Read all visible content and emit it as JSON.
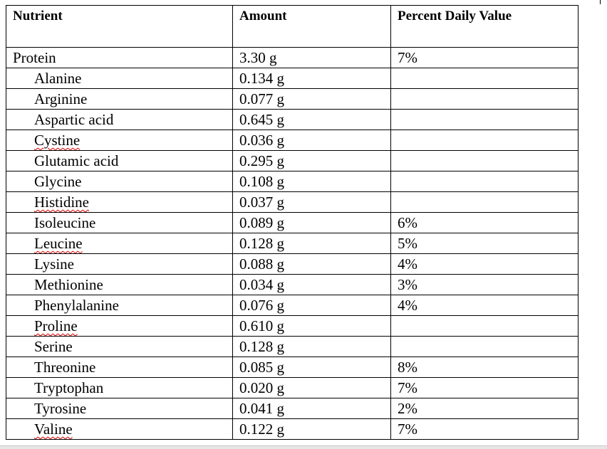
{
  "table": {
    "header": [
      "Nutrient",
      "Amount",
      "Percent Daily Value"
    ],
    "rows": [
      {
        "nutrient": "Protein",
        "amount": "3.30 g",
        "daily_value": "7%",
        "components": [
          {
            "nutrient": "Alanine",
            "amount": "0.134 g"
          },
          {
            "nutrient": "Arginine",
            "amount": "0.077 g"
          },
          {
            "nutrient": "Aspartic acid",
            "amount": "0.645 g"
          },
          {
            "nutrient": "Cystine",
            "amount": "0.036 g",
            "misspelled": true
          },
          {
            "nutrient": "Glutamic acid",
            "amount": "0.295 g"
          },
          {
            "nutrient": "Glycine",
            "amount": "0.108 g"
          },
          {
            "nutrient": "Histidine",
            "amount": "0.037 g",
            "misspelled": true
          },
          {
            "nutrient": "Isoleucine",
            "amount": "0.089 g",
            "daily_value": "6%"
          },
          {
            "nutrient": "Leucine",
            "amount": "0.128 g",
            "daily_value": "5%",
            "misspelled": true
          },
          {
            "nutrient": "Lysine",
            "amount": "0.088 g",
            "daily_value": "4%"
          },
          {
            "nutrient": "Methionine",
            "amount": "0.034 g",
            "daily_value": "3%"
          },
          {
            "nutrient": "Phenylalanine",
            "amount": "0.076 g",
            "daily_value": "4%"
          },
          {
            "nutrient": "Proline",
            "amount": "0.610 g",
            "misspelled": true
          },
          {
            "nutrient": "Serine",
            "amount": "0.128 g"
          },
          {
            "nutrient": "Threonine",
            "amount": "0.085 g",
            "daily_value": "8%"
          },
          {
            "nutrient": "Tryptophan",
            "amount": "0.020 g",
            "daily_value": "7%"
          },
          {
            "nutrient": "Tyrosine",
            "amount": "0.041 g",
            "daily_value": "2%"
          },
          {
            "nutrient": "Valine",
            "amount": "0.122 g",
            "daily_value": "7%",
            "misspelled": true
          }
        ]
      }
    ]
  }
}
